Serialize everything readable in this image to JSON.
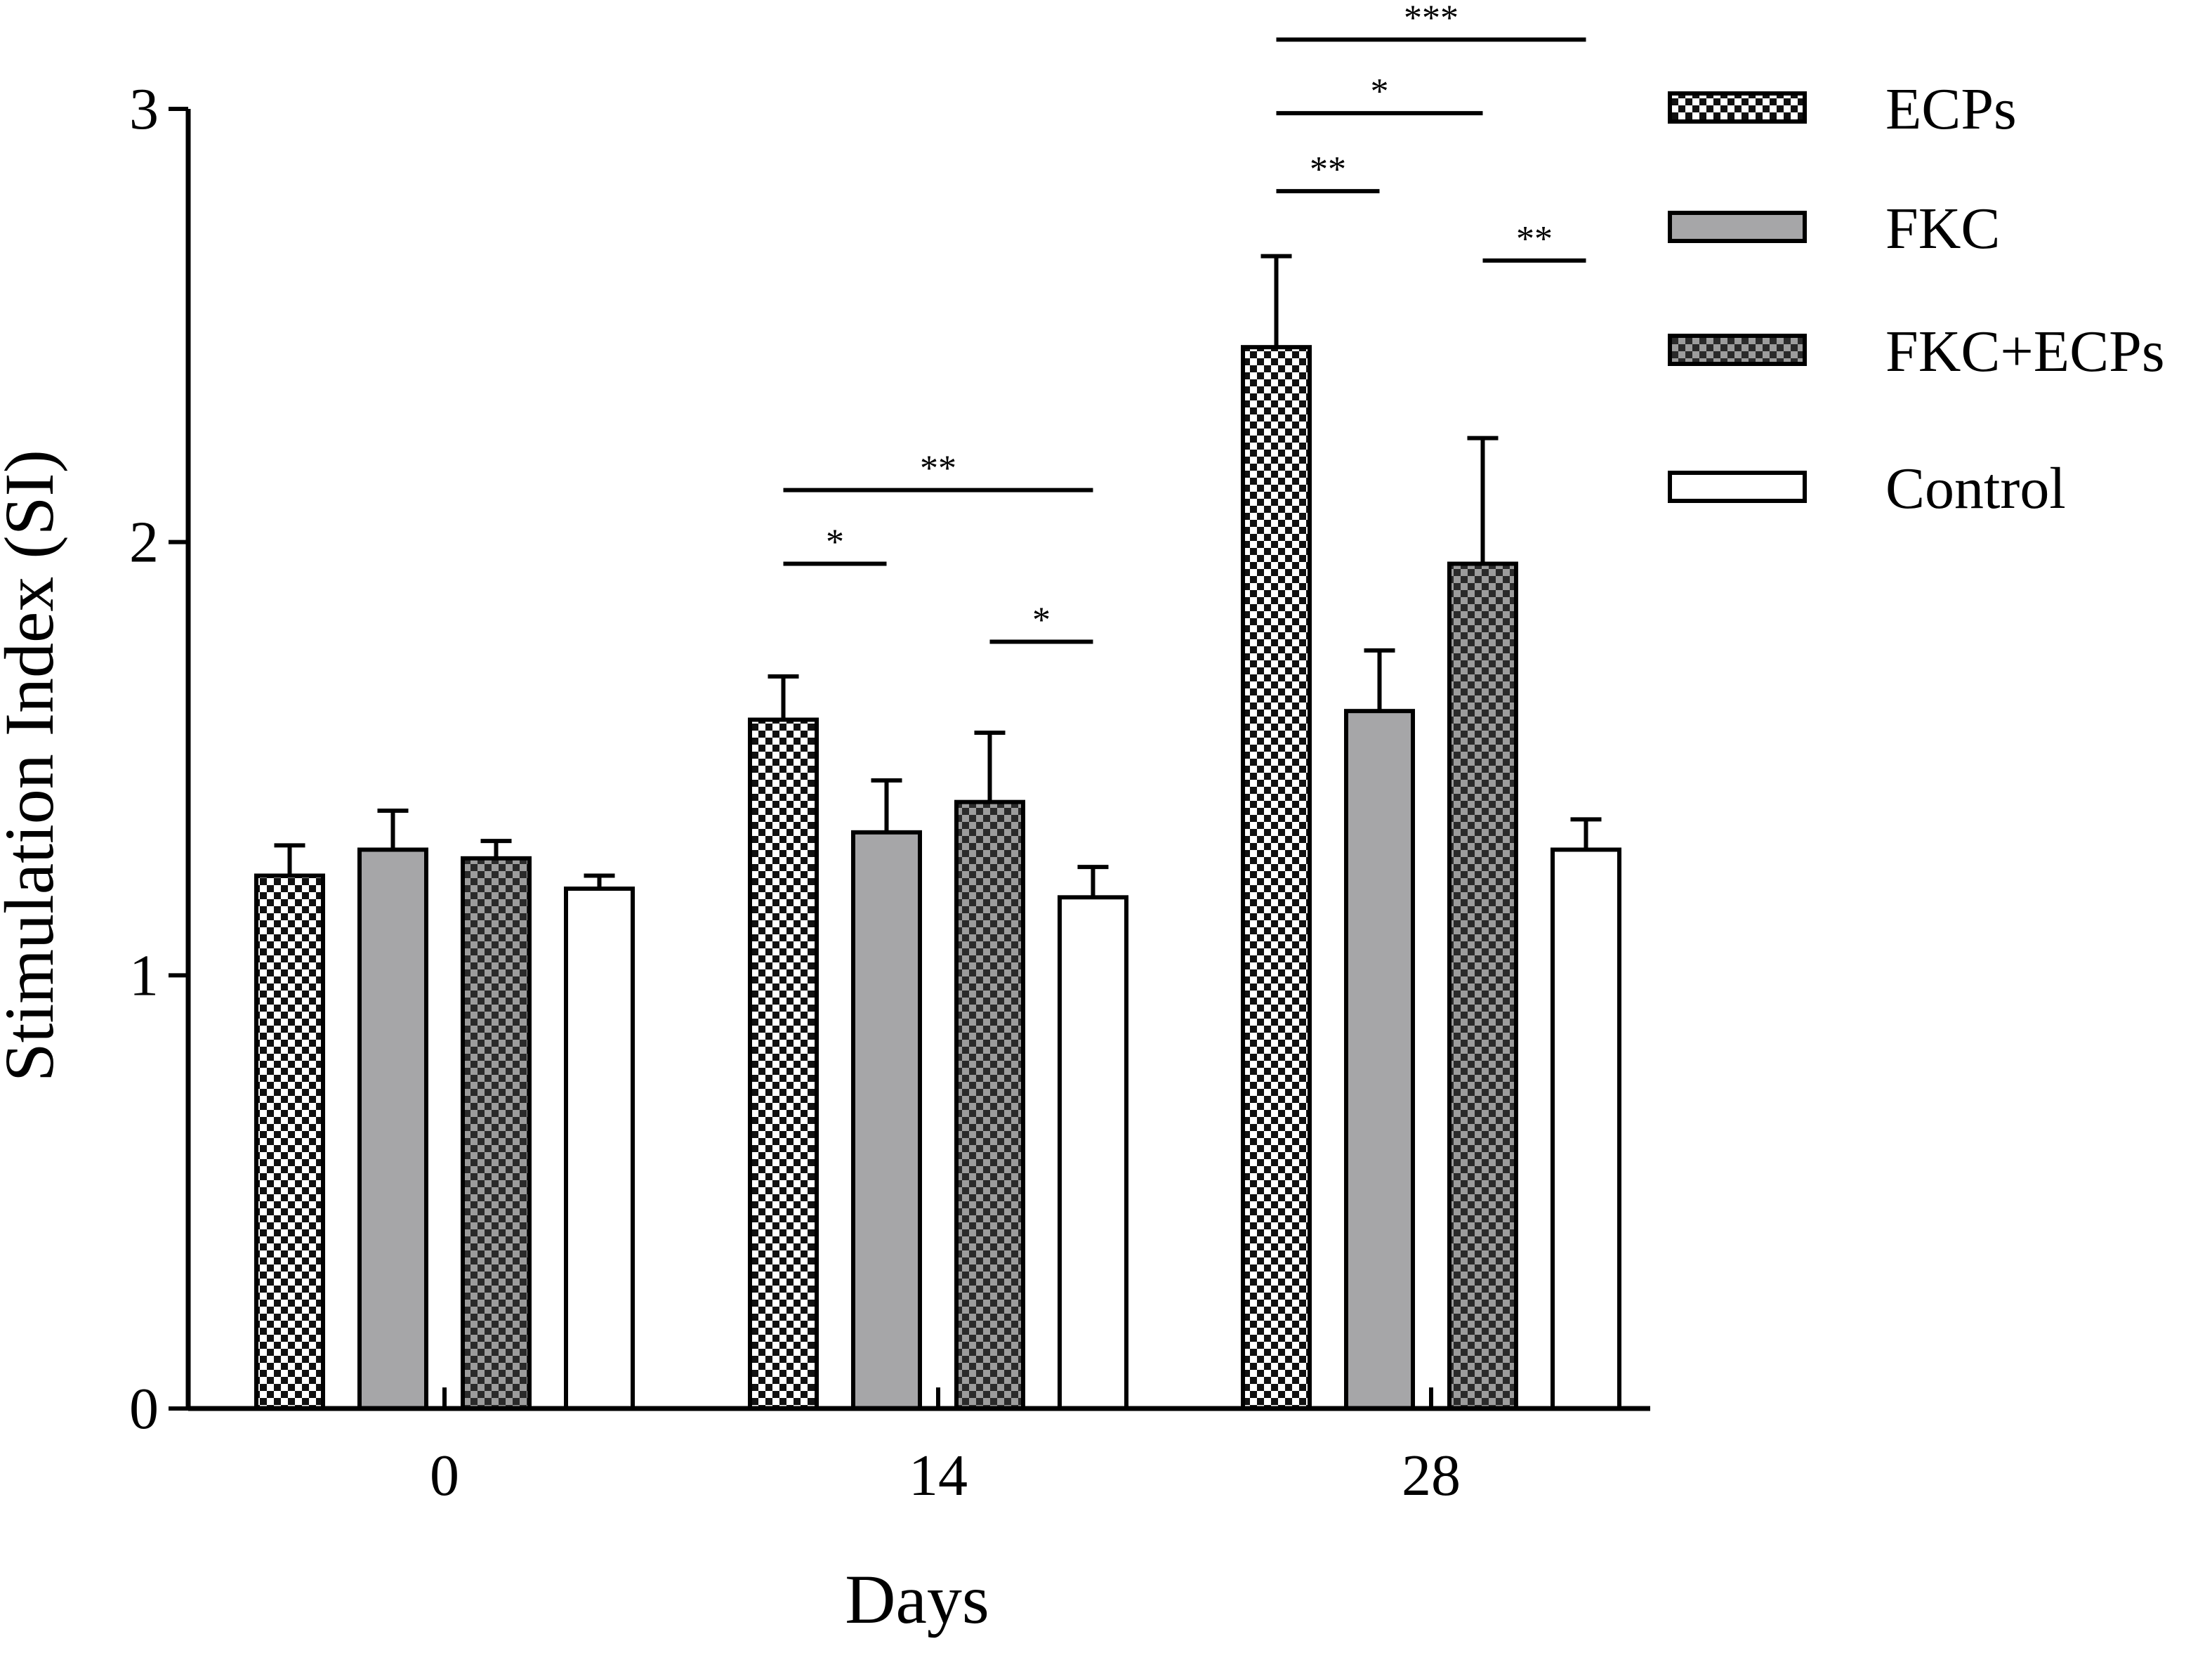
{
  "chart_data": {
    "type": "bar",
    "title": "",
    "xlabel": "Days",
    "ylabel": "Stimulation Index (SI)",
    "categories": [
      "0",
      "14",
      "28"
    ],
    "ylim": [
      0,
      3
    ],
    "yticks": [
      "0",
      "1",
      "2",
      "3"
    ],
    "grid": false,
    "legend_position": "top-right",
    "series": [
      {
        "name": "ECPs",
        "values": [
          1.23,
          1.59,
          2.45
        ],
        "errors": [
          0.07,
          0.1,
          0.21
        ],
        "pattern": "checker-light"
      },
      {
        "name": "FKC",
        "values": [
          1.29,
          1.33,
          1.61
        ],
        "errors": [
          0.09,
          0.12,
          0.14
        ],
        "pattern": "solid-gray"
      },
      {
        "name": "FKC+ECPs",
        "values": [
          1.27,
          1.4,
          1.95
        ],
        "errors": [
          0.04,
          0.16,
          0.29
        ],
        "pattern": "checker-dark"
      },
      {
        "name": "Control",
        "values": [
          1.2,
          1.18,
          1.29
        ],
        "errors": [
          0.03,
          0.07,
          0.07
        ],
        "pattern": "white"
      }
    ],
    "significance": [
      {
        "category": "14",
        "from": 0,
        "to": 1,
        "label": "*",
        "y": 1.95
      },
      {
        "category": "14",
        "from": 0,
        "to": 3,
        "label": "**",
        "y": 2.12
      },
      {
        "category": "14",
        "from": 2,
        "to": 3,
        "label": "*",
        "y": 1.77
      },
      {
        "category": "28",
        "from": 0,
        "to": 1,
        "label": "**",
        "y": 2.81
      },
      {
        "category": "28",
        "from": 0,
        "to": 2,
        "label": "*",
        "y": 2.99
      },
      {
        "category": "28",
        "from": 0,
        "to": 3,
        "label": "***",
        "y": 3.16
      },
      {
        "category": "28",
        "from": 2,
        "to": 3,
        "label": "**",
        "y": 2.65
      }
    ],
    "colors": {
      "axis": "#000000",
      "fkc_fill": "#a6a6a8",
      "checker_light": "#ffffff",
      "checker_dark": "#4a4a4a",
      "control_fill": "#ffffff"
    }
  }
}
